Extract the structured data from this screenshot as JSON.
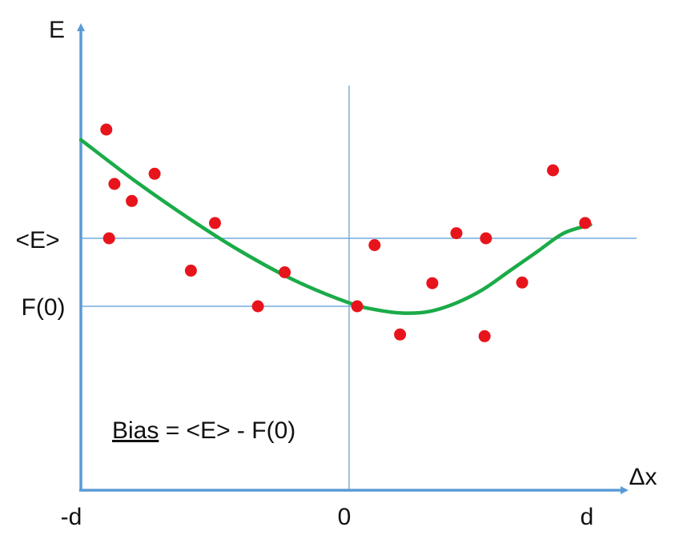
{
  "chart_data": {
    "type": "scatter",
    "title": "",
    "xlabel": "Δx",
    "ylabel": "E",
    "x_ticks": [
      "-d",
      "0",
      "d"
    ],
    "y_ticks": [
      "<E>",
      "F(0)"
    ],
    "xlim": [
      -1.0,
      1.0
    ],
    "ylim": [
      -0.45,
      0.9
    ],
    "reference_lines": {
      "x": [
        {
          "x": 0.0
        }
      ],
      "y": [
        {
          "y": 0.2,
          "label": "<E>"
        },
        {
          "y": 0.0,
          "label": "F(0)"
        }
      ]
    },
    "series": [
      {
        "kind": "scatter",
        "color": "#e8141c",
        "points": [
          [
            -0.905,
            0.52
          ],
          [
            -0.875,
            0.36
          ],
          [
            -0.895,
            0.2
          ],
          [
            -0.81,
            0.31
          ],
          [
            -0.725,
            0.39
          ],
          [
            -0.59,
            0.105
          ],
          [
            -0.5,
            0.245
          ],
          [
            -0.34,
            0.0
          ],
          [
            -0.24,
            0.1
          ],
          [
            0.03,
            0.0
          ],
          [
            0.095,
            0.18
          ],
          [
            0.19,
            -0.083
          ],
          [
            0.31,
            0.068
          ],
          [
            0.4,
            0.215
          ],
          [
            0.51,
            0.2
          ],
          [
            0.505,
            -0.088
          ],
          [
            0.645,
            0.07
          ],
          [
            0.76,
            0.4
          ],
          [
            0.88,
            0.245
          ]
        ]
      },
      {
        "kind": "line",
        "color": "#1aab48",
        "points": [
          [
            -1.0,
            0.49
          ],
          [
            -0.8,
            0.37
          ],
          [
            -0.6,
            0.26
          ],
          [
            -0.4,
            0.16
          ],
          [
            -0.2,
            0.075
          ],
          [
            0.0,
            0.01
          ],
          [
            0.1,
            -0.01
          ],
          [
            0.2,
            -0.02
          ],
          [
            0.3,
            -0.015
          ],
          [
            0.4,
            0.01
          ],
          [
            0.5,
            0.05
          ],
          [
            0.6,
            0.105
          ],
          [
            0.7,
            0.16
          ],
          [
            0.8,
            0.215
          ],
          [
            0.9,
            0.24
          ]
        ]
      }
    ],
    "annotations": [
      {
        "text_before": "Bias",
        "text_after": " = <E> - F(0)"
      }
    ],
    "colors": {
      "axis": "#5b9bd5",
      "ref_line": "#5b9bd5"
    }
  }
}
